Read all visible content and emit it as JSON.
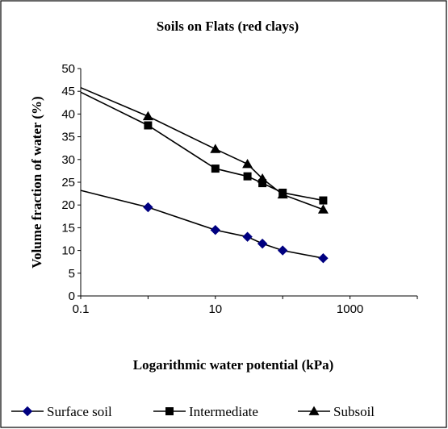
{
  "chart_data": {
    "type": "line",
    "title": "Soils on Flats (red clays)",
    "xlabel": "Logarithmic water potential (kPa)",
    "ylabel": "Volume fraction of water (%)",
    "xscale": "log",
    "xlim": [
      0.1,
      10000
    ],
    "ylim": [
      0,
      50
    ],
    "x_ticks": [
      "0.1",
      "10",
      "1000"
    ],
    "y_ticks": [
      "0",
      "5",
      "10",
      "15",
      "20",
      "25",
      "30",
      "35",
      "40",
      "45",
      "50"
    ],
    "grid": false,
    "legend_position": "bottom",
    "series": [
      {
        "name": "Surface soil",
        "marker": "diamond",
        "color": "#000080",
        "points": [
          [
            0.1,
            23.2
          ],
          [
            1,
            19.5
          ],
          [
            10,
            14.5
          ],
          [
            30,
            13
          ],
          [
            50,
            11.5
          ],
          [
            100,
            10
          ],
          [
            400,
            8.3
          ]
        ]
      },
      {
        "name": "Intermediate",
        "marker": "square",
        "color": "#000000",
        "points": [
          [
            0.1,
            44.8
          ],
          [
            1,
            37.5
          ],
          [
            10,
            28
          ],
          [
            30,
            26.3
          ],
          [
            50,
            24.8
          ],
          [
            100,
            22.7
          ],
          [
            400,
            21
          ]
        ]
      },
      {
        "name": "Subsoil",
        "marker": "triangle",
        "color": "#000000",
        "points": [
          [
            0.1,
            45.8
          ],
          [
            1,
            39.5
          ],
          [
            10,
            32.3
          ],
          [
            30,
            29
          ],
          [
            50,
            25.8
          ],
          [
            100,
            22.3
          ],
          [
            400,
            19
          ]
        ]
      }
    ]
  }
}
